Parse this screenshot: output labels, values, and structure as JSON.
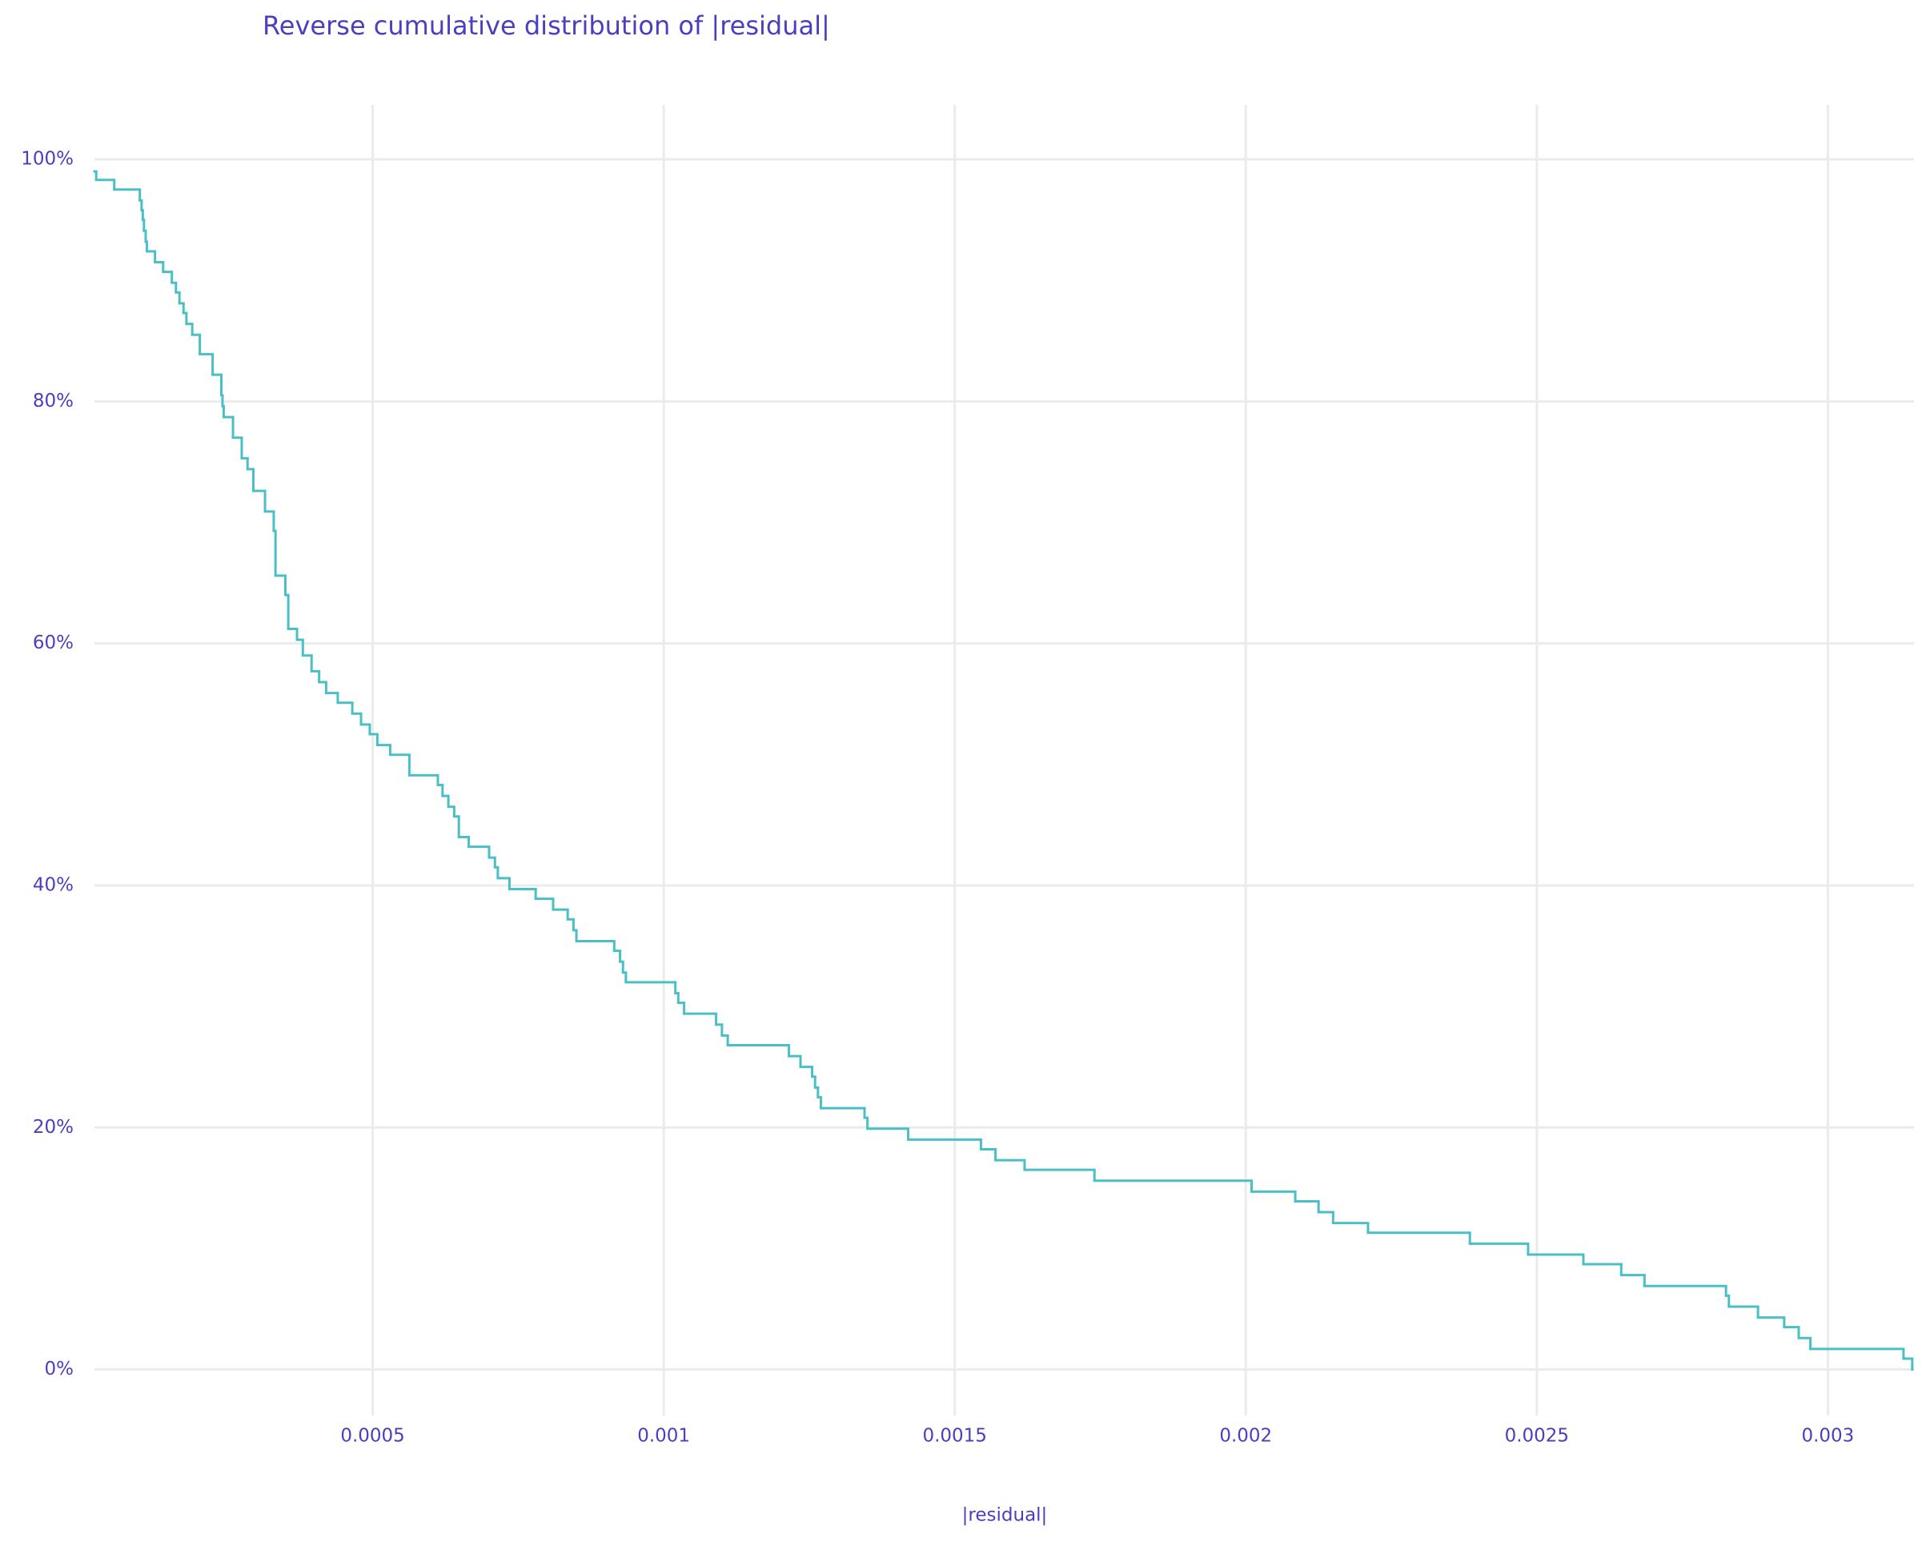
{
  "chart_data": {
    "type": "line",
    "title": "Reverse cumulative distribution of |residual|",
    "x_label": "|residual|",
    "line_shape": "hv",
    "grid": true,
    "xlim": [
      2.2e-05,
      0.003148
    ],
    "ylim": [
      -3.8,
      104.5
    ],
    "xticks": [
      0.0005,
      0.001,
      0.0015,
      0.002,
      0.0025,
      0.003
    ],
    "yticks": [
      {
        "value": 0,
        "label": "0%"
      },
      {
        "value": 20,
        "label": "20%"
      },
      {
        "value": 40,
        "label": "40%"
      },
      {
        "value": 60,
        "label": "60%"
      },
      {
        "value": 80,
        "label": "80%"
      },
      {
        "value": 100,
        "label": "100%"
      }
    ],
    "x": [
      2.2e-05,
      2.5e-05,
      5.6e-05,
      0.0001,
      0.000103,
      0.000105,
      0.000107,
      0.00011,
      0.000112,
      0.000126,
      0.00014,
      0.000155,
      0.000162,
      0.000168,
      0.000175,
      0.00018,
      0.00019,
      0.000203,
      0.000225,
      0.00024,
      0.000242,
      0.000244,
      0.00026,
      0.000275,
      0.000285,
      0.000295,
      0.000315,
      0.00033,
      0.000333,
      0.00035,
      0.000355,
      0.00037,
      0.00038,
      0.000395,
      0.000408,
      0.00042,
      0.00044,
      0.000465,
      0.00048,
      0.000495,
      0.000508,
      0.00053,
      0.000563,
      0.000612,
      0.00062,
      0.00063,
      0.00064,
      0.000648,
      0.000665,
      0.0007,
      0.00071,
      0.000715,
      0.000735,
      0.00078,
      0.00081,
      0.000835,
      0.000845,
      0.00085,
      0.000915,
      0.000925,
      0.00093,
      0.000935,
      0.00102,
      0.001025,
      0.001035,
      0.00109,
      0.0011,
      0.00111,
      0.001215,
      0.001235,
      0.001255,
      0.00126,
      0.001265,
      0.00127,
      0.001345,
      0.00135,
      0.00142,
      0.001545,
      0.00157,
      0.00162,
      0.00174,
      0.00201,
      0.002085,
      0.002125,
      0.00215,
      0.00221,
      0.002385,
      0.002485,
      0.00258,
      0.002645,
      0.002685,
      0.002825,
      0.00283,
      0.00288,
      0.002925,
      0.00295,
      0.00297,
      0.00313,
      0.003145
    ],
    "series": [
      {
        "color": "#4bbfc6",
        "values": [
          99,
          98.3,
          97.5,
          96.6,
          95.8,
          95,
          94.1,
          93.2,
          92.4,
          91.5,
          90.7,
          89.8,
          89,
          88.1,
          87.3,
          86.4,
          85.5,
          83.9,
          82.2,
          80.5,
          79.6,
          78.7,
          77,
          75.3,
          74.4,
          72.6,
          70.9,
          69.3,
          65.6,
          64,
          61.2,
          60.3,
          59,
          57.7,
          56.8,
          55.9,
          55.1,
          54.2,
          53.3,
          52.5,
          51.6,
          50.8,
          49.1,
          48.3,
          47.4,
          46.5,
          45.7,
          44,
          43.2,
          42.3,
          41.5,
          40.6,
          39.7,
          38.9,
          38,
          37.2,
          36.3,
          35.4,
          34.6,
          33.7,
          32.8,
          32,
          31.1,
          30.3,
          29.4,
          28.5,
          27.6,
          26.8,
          25.9,
          25,
          24.2,
          23.3,
          22.5,
          21.6,
          20.8,
          19.9,
          19,
          18.2,
          17.3,
          16.5,
          15.6,
          14.7,
          13.9,
          13,
          12.1,
          11.3,
          10.4,
          9.5,
          8.7,
          7.8,
          6.9,
          6.1,
          5.2,
          4.3,
          3.5,
          2.6,
          1.7,
          0.9,
          0
        ]
      }
    ]
  }
}
